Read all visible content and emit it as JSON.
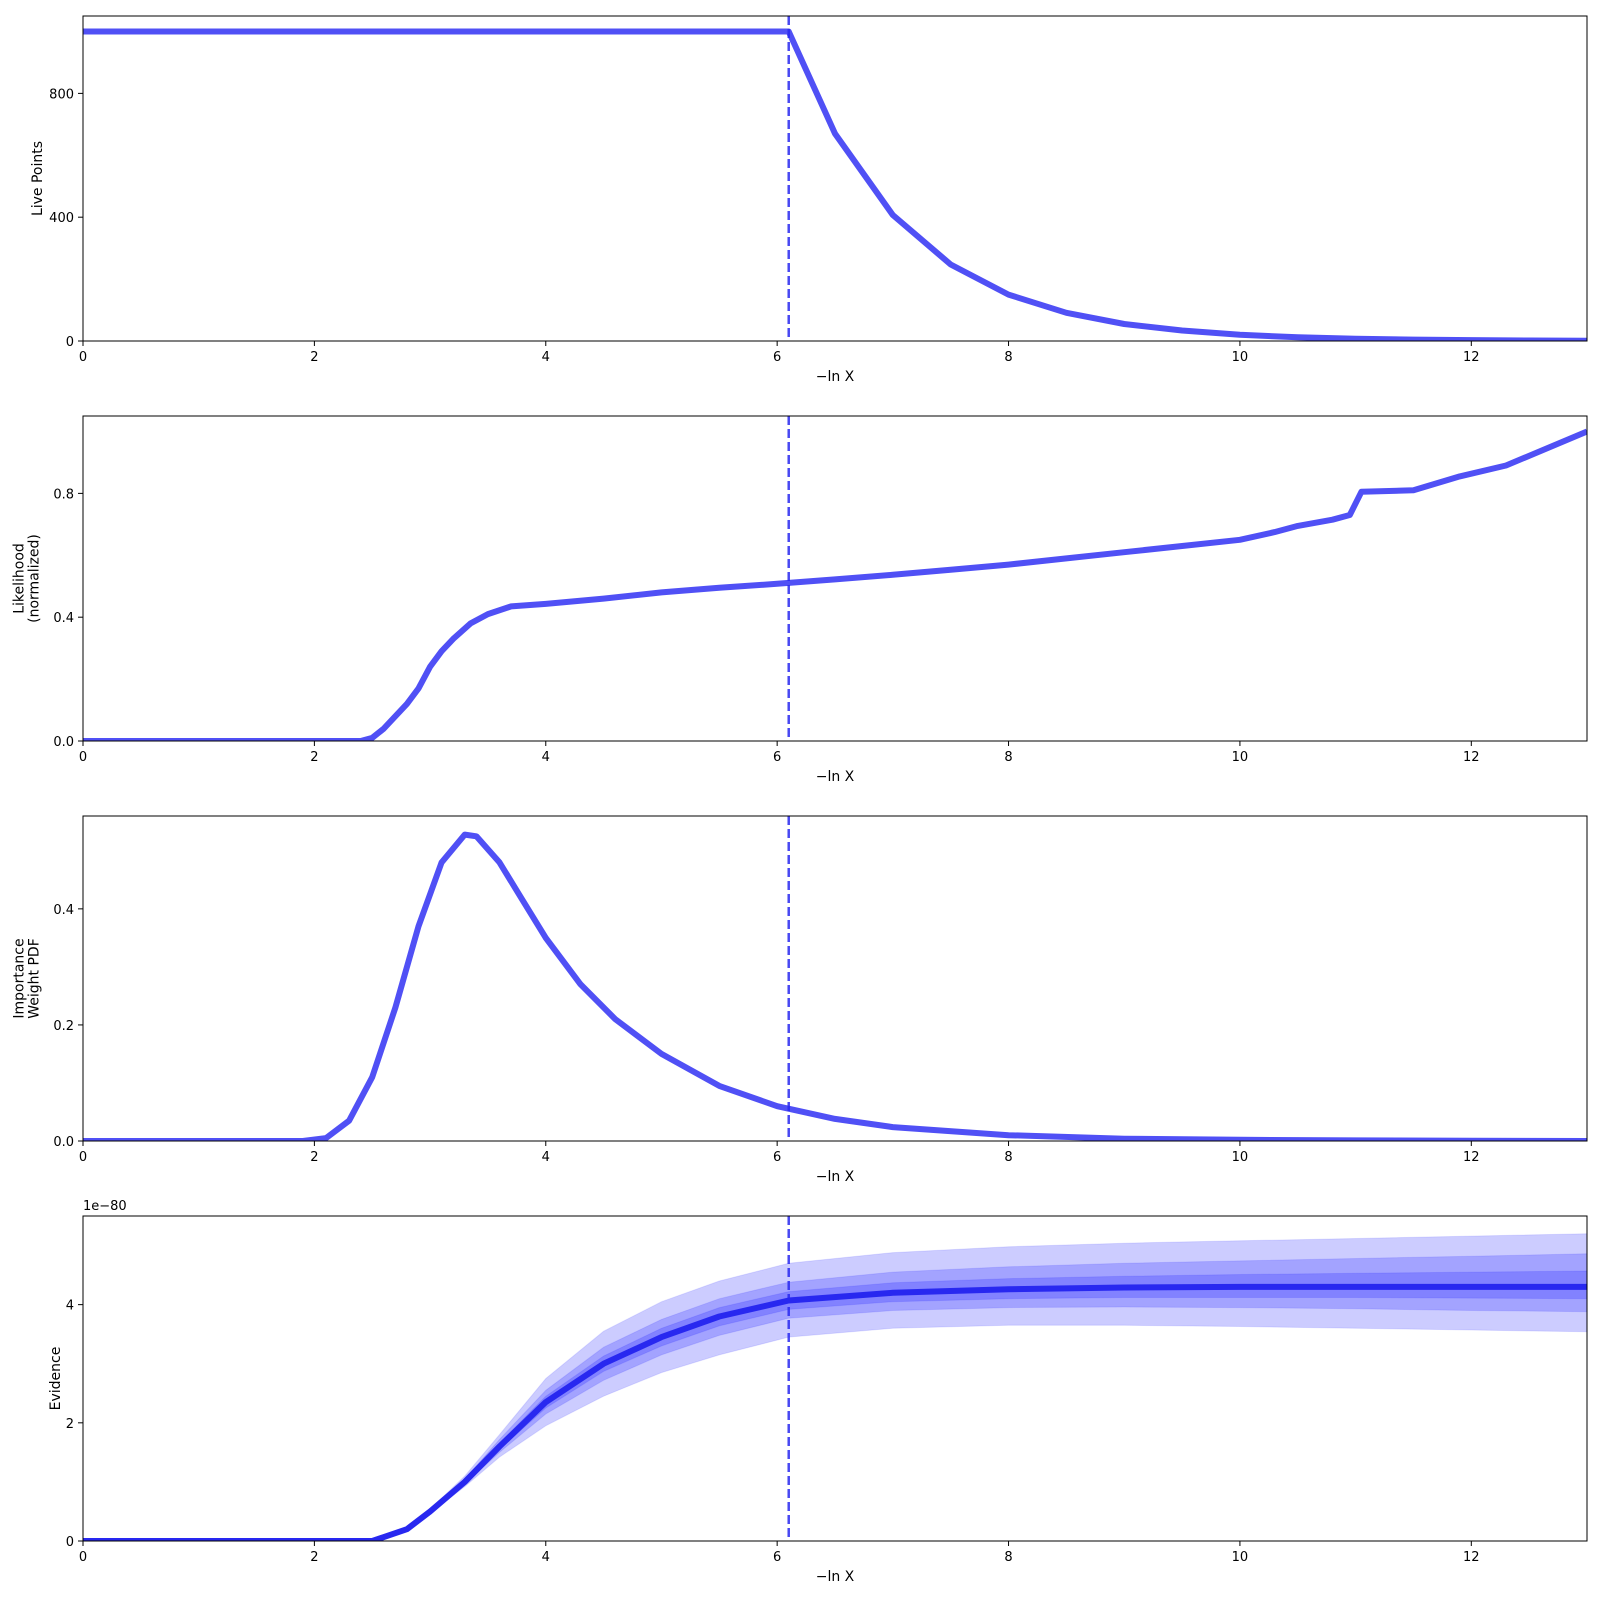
{
  "colors": {
    "line": "#5050f5",
    "evidence_line": "#2828f0",
    "band": "#0000ff",
    "axes": "#000000",
    "background": "#ffffff"
  },
  "chart_data": [
    {
      "type": "line",
      "ylabel": [
        "Live Points"
      ],
      "xlabel": "−ln X",
      "xlim": [
        0,
        13
      ],
      "ylim": [
        0,
        1050
      ],
      "xticks": [
        0,
        2,
        4,
        6,
        8,
        10,
        12
      ],
      "yticks": [
        0,
        400,
        800
      ],
      "vline_x": 6.1,
      "series": [
        {
          "x": [
            0,
            1,
            2,
            3,
            4,
            5,
            6.1,
            6.5,
            7,
            7.5,
            8,
            8.5,
            9,
            9.5,
            10,
            10.5,
            11,
            11.5,
            12,
            12.5,
            13
          ],
          "y": [
            1000,
            1000,
            1000,
            1000,
            1000,
            1000,
            1000,
            670,
            407,
            247,
            150,
            91,
            55,
            34,
            20,
            12,
            7.5,
            4.6,
            2.8,
            1.7,
            1
          ]
        }
      ]
    },
    {
      "type": "line",
      "ylabel": [
        "Likelihood",
        "(normalized)"
      ],
      "xlabel": "−ln X",
      "xlim": [
        0,
        13
      ],
      "ylim": [
        0,
        1.05
      ],
      "xticks": [
        0,
        2,
        4,
        6,
        8,
        10,
        12
      ],
      "yticks": [
        0.0,
        0.4,
        0.8
      ],
      "ytick_labels": [
        "0.0",
        "0.4",
        "0.8"
      ],
      "vline_x": 6.1,
      "series": [
        {
          "x": [
            0,
            2.2,
            2.4,
            2.5,
            2.6,
            2.7,
            2.8,
            2.9,
            3.0,
            3.1,
            3.2,
            3.35,
            3.5,
            3.7,
            4.0,
            4.5,
            5.0,
            5.5,
            6.0,
            6.5,
            7.0,
            7.5,
            8.0,
            8.5,
            9.0,
            9.5,
            10.0,
            10.3,
            10.5,
            10.8,
            10.95,
            11.05,
            11.5,
            11.9,
            12.3,
            13.0
          ],
          "y": [
            0,
            0,
            0,
            0.01,
            0.04,
            0.08,
            0.12,
            0.17,
            0.24,
            0.29,
            0.33,
            0.38,
            0.41,
            0.435,
            0.443,
            0.46,
            0.48,
            0.495,
            0.508,
            0.522,
            0.537,
            0.553,
            0.57,
            0.59,
            0.61,
            0.63,
            0.65,
            0.675,
            0.695,
            0.715,
            0.73,
            0.805,
            0.81,
            0.855,
            0.89,
            1.0
          ]
        }
      ]
    },
    {
      "type": "line",
      "ylabel": [
        "Importance",
        "Weight PDF"
      ],
      "xlabel": "−ln X",
      "xlim": [
        0,
        13
      ],
      "ylim": [
        0,
        0.56
      ],
      "xticks": [
        0,
        2,
        4,
        6,
        8,
        10,
        12
      ],
      "yticks": [
        0.0,
        0.2,
        0.4
      ],
      "ytick_labels": [
        "0.0",
        "0.2",
        "0.4"
      ],
      "vline_x": 6.1,
      "series": [
        {
          "x": [
            0,
            1.9,
            2.1,
            2.3,
            2.5,
            2.7,
            2.9,
            3.1,
            3.3,
            3.4,
            3.6,
            3.8,
            4.0,
            4.3,
            4.6,
            5.0,
            5.5,
            6.0,
            6.5,
            7.0,
            8.0,
            9.0,
            10.0,
            11.0,
            12.0,
            13.0
          ],
          "y": [
            0,
            0,
            0.005,
            0.035,
            0.11,
            0.23,
            0.37,
            0.48,
            0.528,
            0.525,
            0.48,
            0.415,
            0.35,
            0.27,
            0.21,
            0.15,
            0.095,
            0.06,
            0.038,
            0.024,
            0.01,
            0.004,
            0.002,
            0.001,
            0.0005,
            0
          ]
        }
      ]
    },
    {
      "type": "area",
      "ylabel": [
        "Evidence"
      ],
      "xlabel": "−ln X",
      "offset_label": "1e−80",
      "xlim": [
        0,
        13
      ],
      "ylim": [
        0,
        5.5
      ],
      "xticks": [
        0,
        2,
        4,
        6,
        8,
        10,
        12
      ],
      "yticks": [
        0,
        2,
        4
      ],
      "vline_x": 6.1,
      "x": [
        0,
        2.2,
        2.5,
        2.8,
        3.0,
        3.3,
        3.6,
        4.0,
        4.5,
        5.0,
        5.5,
        6.1,
        7.0,
        8.0,
        9.0,
        10.0,
        11.0,
        12.0,
        13.0
      ],
      "series": [
        {
          "name": "median",
          "y": [
            0,
            0,
            0,
            0.2,
            0.5,
            1.0,
            1.6,
            2.35,
            3.0,
            3.45,
            3.8,
            4.07,
            4.2,
            4.26,
            4.29,
            4.3,
            4.3,
            4.3,
            4.3
          ]
        }
      ],
      "bands": [
        {
          "lower": [
            0,
            0,
            0,
            0.19,
            0.47,
            0.92,
            1.42,
            1.95,
            2.45,
            2.85,
            3.15,
            3.45,
            3.6,
            3.65,
            3.65,
            3.63,
            3.6,
            3.57,
            3.54
          ],
          "upper": [
            0,
            0,
            0,
            0.21,
            0.54,
            1.1,
            1.8,
            2.75,
            3.55,
            4.05,
            4.4,
            4.7,
            4.88,
            4.98,
            5.04,
            5.08,
            5.12,
            5.16,
            5.2
          ]
        },
        {
          "lower": [
            0,
            0,
            0,
            0.195,
            0.485,
            0.96,
            1.5,
            2.15,
            2.72,
            3.15,
            3.48,
            3.77,
            3.9,
            3.95,
            3.96,
            3.95,
            3.93,
            3.9,
            3.88
          ],
          "upper": [
            0,
            0,
            0,
            0.205,
            0.52,
            1.05,
            1.72,
            2.55,
            3.28,
            3.75,
            4.1,
            4.38,
            4.55,
            4.64,
            4.7,
            4.74,
            4.78,
            4.82,
            4.86
          ]
        },
        {
          "lower": [
            0,
            0,
            0,
            0.198,
            0.495,
            0.98,
            1.55,
            2.25,
            2.87,
            3.3,
            3.64,
            3.92,
            4.05,
            4.1,
            4.12,
            4.12,
            4.12,
            4.11,
            4.1
          ],
          "upper": [
            0,
            0,
            0,
            0.202,
            0.508,
            1.02,
            1.66,
            2.45,
            3.13,
            3.6,
            3.95,
            4.22,
            4.37,
            4.44,
            4.48,
            4.51,
            4.53,
            4.55,
            4.57
          ]
        }
      ]
    }
  ]
}
